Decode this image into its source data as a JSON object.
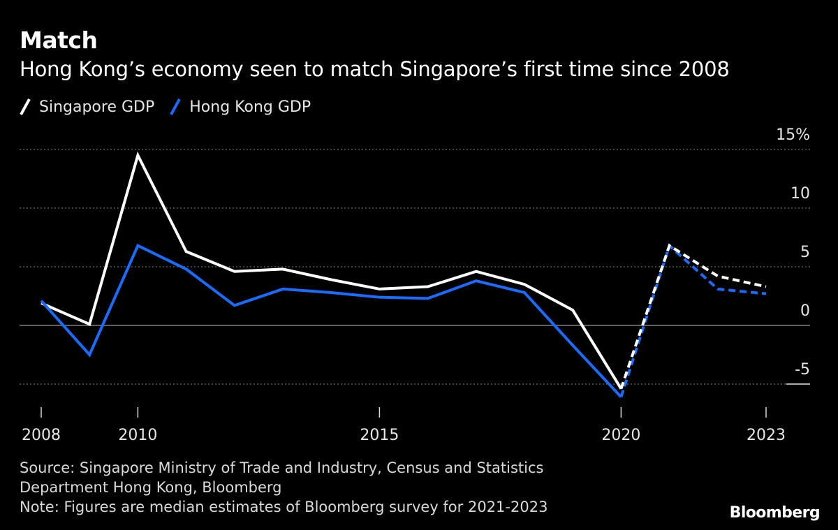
{
  "header": {
    "title": "Match",
    "subtitle": "Hong Kong’s economy seen to match Singapore’s first time since 2008"
  },
  "footer": {
    "source_line1": "Source: Singapore Ministry of Trade and Industry, Census and Statistics",
    "source_line2": "Department Hong Kong, Bloomberg",
    "note": "Note: Figures are median estimates of Bloomberg survey for 2021-2023",
    "brand": "Bloomberg"
  },
  "colors": {
    "background": "#000000",
    "singapore": "#ffffff",
    "hong_kong": "#1a6cff",
    "grid": "#8a8a8a"
  },
  "chart_data": {
    "type": "line",
    "title": "Match",
    "subtitle": "Hong Kong’s economy seen to match Singapore’s first time since 2008",
    "x": [
      2008,
      2009,
      2010,
      2011,
      2012,
      2013,
      2014,
      2015,
      2016,
      2017,
      2018,
      2019,
      2020,
      2021,
      2022,
      2023
    ],
    "estimate_from": 2021,
    "series": [
      {
        "name": "Singapore GDP",
        "color": "#ffffff",
        "values": [
          1.9,
          0.1,
          14.5,
          6.3,
          4.6,
          4.8,
          3.9,
          3.1,
          3.3,
          4.6,
          3.5,
          1.3,
          -5.4,
          6.8,
          4.2,
          3.3
        ]
      },
      {
        "name": "Hong Kong GDP",
        "color": "#1a6cff",
        "values": [
          2.1,
          -2.5,
          6.8,
          4.8,
          1.7,
          3.1,
          2.8,
          2.4,
          2.3,
          3.8,
          2.8,
          -1.7,
          -6.1,
          6.8,
          3.1,
          2.7
        ]
      }
    ],
    "y_ticks": [
      {
        "value": 15,
        "label": "15%"
      },
      {
        "value": 10,
        "label": "10"
      },
      {
        "value": 5,
        "label": "5"
      },
      {
        "value": 0,
        "label": "0"
      },
      {
        "value": -5,
        "label": "-5"
      }
    ],
    "x_ticks": [
      {
        "value": 2008,
        "label": "2008"
      },
      {
        "value": 2010,
        "label": "2010"
      },
      {
        "value": 2015,
        "label": "2015"
      },
      {
        "value": 2020,
        "label": "2020"
      },
      {
        "value": 2023,
        "label": "2023"
      }
    ],
    "ylim": [
      -5,
      15
    ],
    "xlim": [
      2008,
      2023
    ],
    "grid": "dotted horizontal",
    "legend_position": "top-left",
    "y_axis_side": "right"
  }
}
